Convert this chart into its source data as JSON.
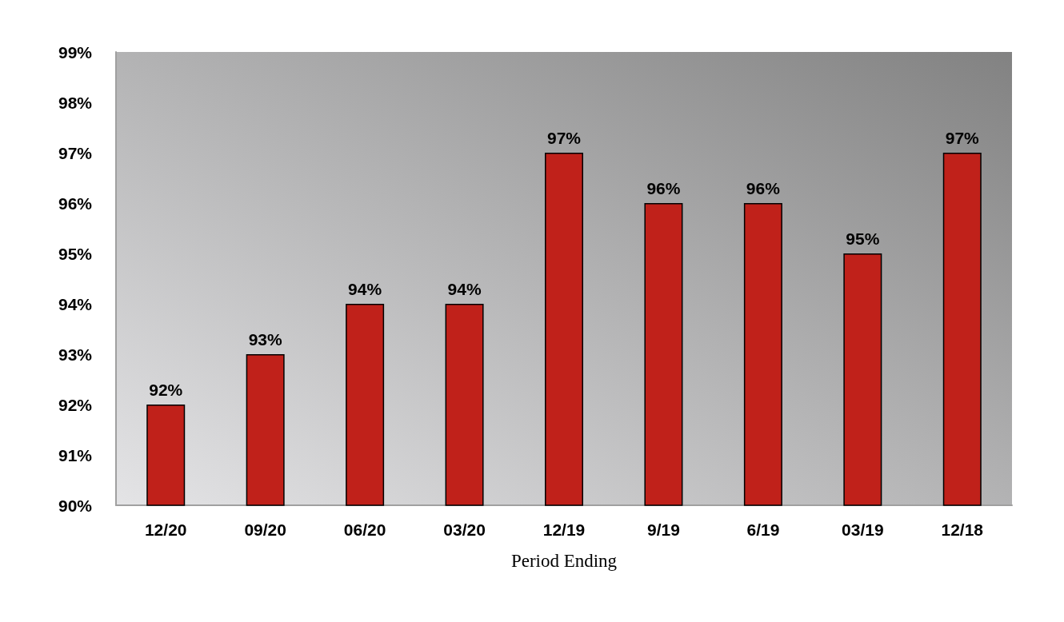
{
  "chart_data": {
    "type": "bar",
    "xlabel": "Period Ending",
    "categories": [
      "12/20",
      "09/20",
      "06/20",
      "03/20",
      "12/19",
      "9/19",
      "6/19",
      "03/19",
      "12/18"
    ],
    "values": [
      92,
      93,
      94,
      94,
      97,
      96,
      96,
      95,
      97
    ],
    "value_labels": [
      "92%",
      "93%",
      "94%",
      "94%",
      "97%",
      "96%",
      "96%",
      "95%",
      "97%"
    ],
    "color": "#c0211a",
    "ylim": [
      90,
      99
    ],
    "yticks": [
      {
        "value": 90,
        "label": "90%"
      },
      {
        "value": 91,
        "label": "91%"
      },
      {
        "value": 92,
        "label": "92%"
      },
      {
        "value": 93,
        "label": "93%"
      },
      {
        "value": 94,
        "label": "94%"
      },
      {
        "value": 95,
        "label": "95%"
      },
      {
        "value": 96,
        "label": "96%"
      },
      {
        "value": 97,
        "label": "97%"
      },
      {
        "value": 98,
        "label": "98%"
      },
      {
        "value": 99,
        "label": "99%"
      }
    ],
    "grid": false
  }
}
